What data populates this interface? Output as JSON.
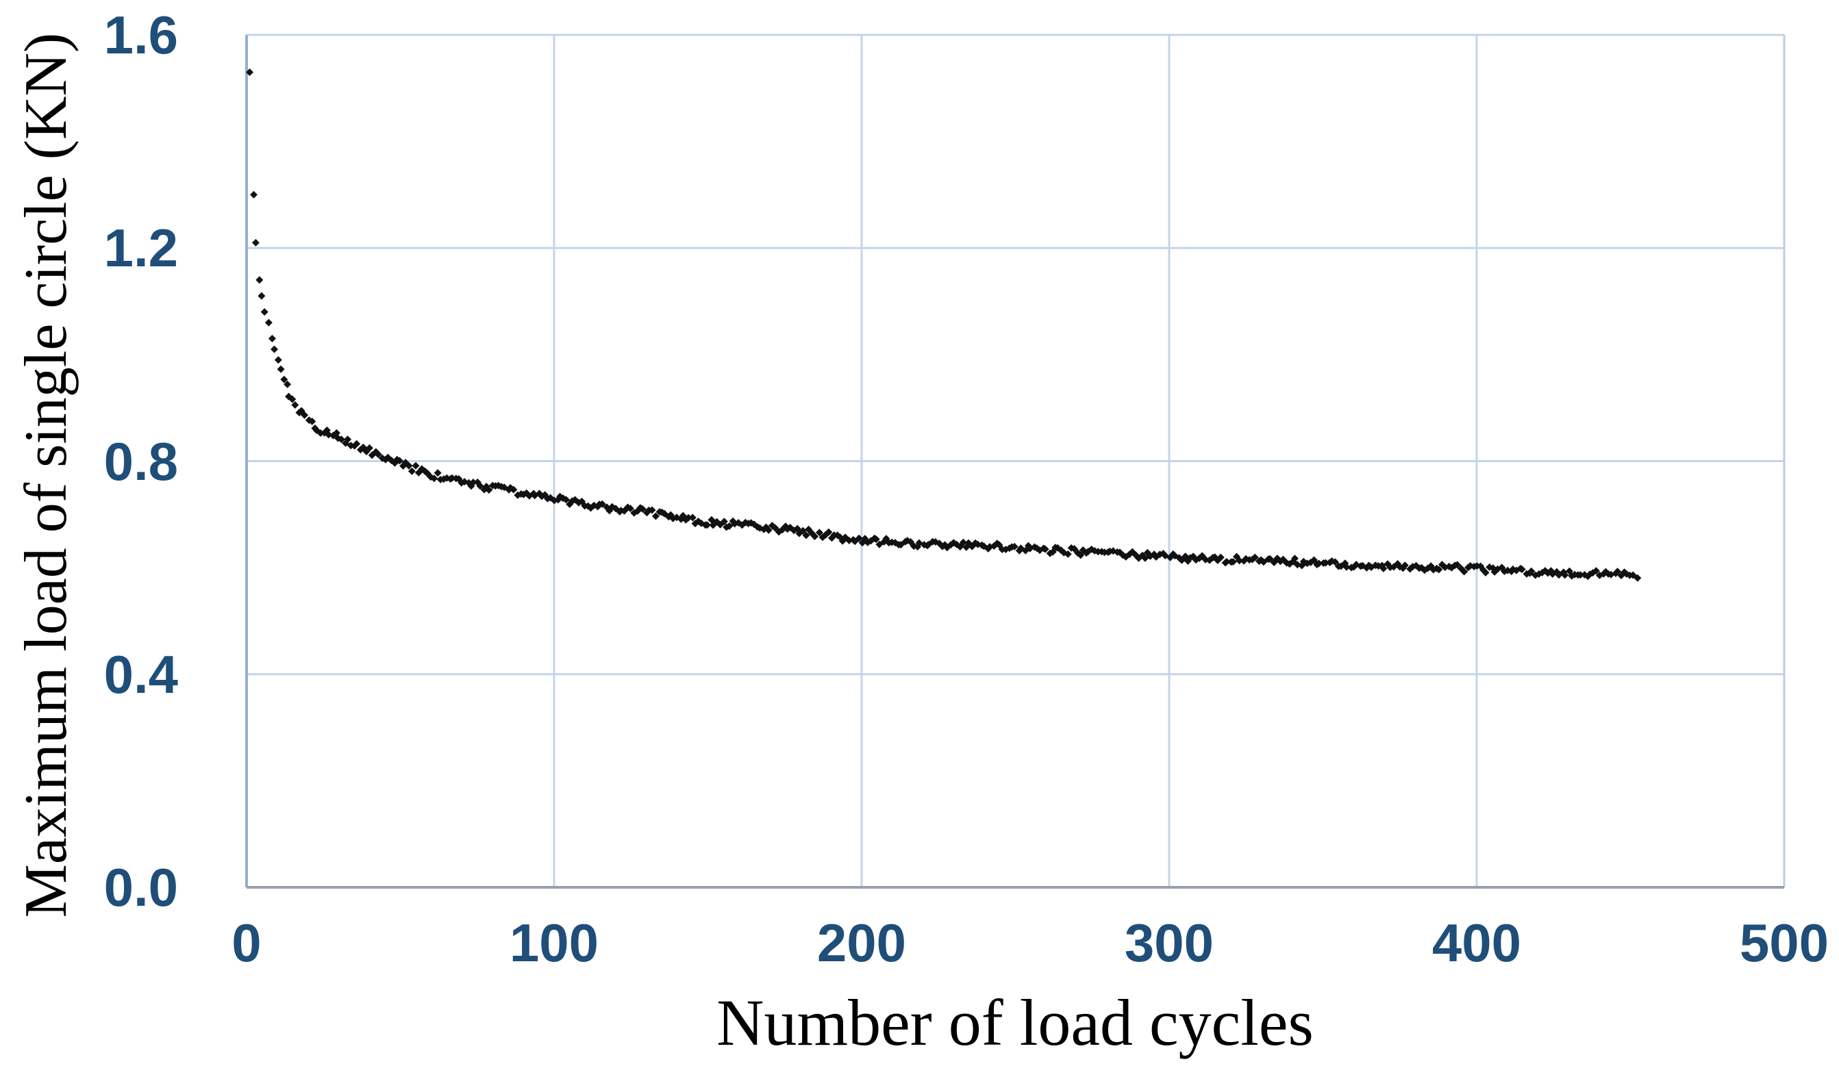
{
  "chart_data": {
    "type": "scatter",
    "title": "",
    "xlabel": "Number of load cycles",
    "ylabel": "Maximum load of single circle (KN)",
    "xlim": [
      0,
      500
    ],
    "ylim": [
      0.0,
      1.6
    ],
    "grid": true,
    "legend": "none",
    "x_tick_values": [
      0,
      100,
      200,
      300,
      400,
      500
    ],
    "x_tick_labels": [
      "0",
      "100",
      "200",
      "300",
      "400",
      "500"
    ],
    "y_tick_values": [
      0.0,
      0.4,
      0.8,
      1.2,
      1.6
    ],
    "y_tick_labels": [
      "0.0",
      "0.4",
      "0.8",
      "1.2",
      "1.6"
    ],
    "colors": {
      "tick_label": "#1f4e79",
      "grid_line": "#c3d4e9",
      "left_axis": "#92afd2",
      "bottom_axis": "#9aa1ad",
      "right_border": "#bccfe6",
      "marker": "#111111"
    },
    "series": [
      {
        "name": "Maximum load of single circle",
        "marker": "diamond",
        "x_start": 1,
        "x_end": 452,
        "points_per_cycle": 1,
        "anchors": [
          [
            1,
            1.53
          ],
          [
            2,
            1.3
          ],
          [
            3,
            1.21
          ],
          [
            4,
            1.14
          ],
          [
            5,
            1.11
          ],
          [
            6,
            1.08
          ],
          [
            7,
            1.06
          ],
          [
            8,
            1.03
          ],
          [
            9,
            1.01
          ],
          [
            10,
            0.99
          ],
          [
            12,
            0.955
          ],
          [
            14,
            0.925
          ],
          [
            16,
            0.905
          ],
          [
            18,
            0.89
          ],
          [
            20,
            0.875
          ],
          [
            25,
            0.855
          ],
          [
            30,
            0.845
          ],
          [
            35,
            0.83
          ],
          [
            40,
            0.82
          ],
          [
            45,
            0.805
          ],
          [
            50,
            0.795
          ],
          [
            60,
            0.775
          ],
          [
            70,
            0.76
          ],
          [
            80,
            0.75
          ],
          [
            90,
            0.74
          ],
          [
            100,
            0.73
          ],
          [
            110,
            0.72
          ],
          [
            120,
            0.71
          ],
          [
            130,
            0.705
          ],
          [
            140,
            0.695
          ],
          [
            150,
            0.685
          ],
          [
            160,
            0.68
          ],
          [
            170,
            0.675
          ],
          [
            180,
            0.668
          ],
          [
            190,
            0.66
          ],
          [
            200,
            0.65
          ],
          [
            210,
            0.648
          ],
          [
            220,
            0.645
          ],
          [
            230,
            0.642
          ],
          [
            240,
            0.64
          ],
          [
            250,
            0.638
          ],
          [
            260,
            0.633
          ],
          [
            270,
            0.63
          ],
          [
            280,
            0.627
          ],
          [
            290,
            0.624
          ],
          [
            300,
            0.62
          ],
          [
            310,
            0.617
          ],
          [
            320,
            0.615
          ],
          [
            330,
            0.613
          ],
          [
            340,
            0.611
          ],
          [
            350,
            0.608
          ],
          [
            360,
            0.606
          ],
          [
            370,
            0.604
          ],
          [
            380,
            0.602
          ],
          [
            390,
            0.6
          ],
          [
            400,
            0.598
          ],
          [
            410,
            0.595
          ],
          [
            420,
            0.592
          ],
          [
            430,
            0.59
          ],
          [
            440,
            0.588
          ],
          [
            452,
            0.585
          ]
        ]
      }
    ]
  }
}
